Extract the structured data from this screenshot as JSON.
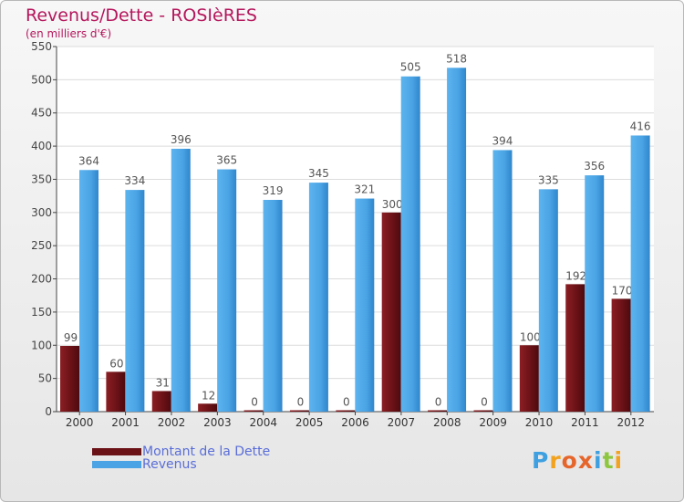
{
  "colors": {
    "debt": "#6b1217",
    "revenue": "#4aa3e4",
    "title": "#b5165c",
    "legend_text": "#5a6ed8"
  },
  "chart_data": {
    "type": "bar",
    "title": "Revenus/Dette - ROSIèRES",
    "subtitle": "(en milliers d'€)",
    "categories": [
      "2000",
      "2001",
      "2002",
      "2003",
      "2004",
      "2005",
      "2006",
      "2007",
      "2008",
      "2009",
      "2010",
      "2011",
      "2012"
    ],
    "series": [
      {
        "name": "Montant de la Dette",
        "values": [
          99,
          60,
          31,
          12,
          0,
          0,
          0,
          300,
          0,
          0,
          100,
          192,
          170
        ]
      },
      {
        "name": "Revenus",
        "values": [
          364,
          334,
          396,
          365,
          319,
          345,
          321,
          505,
          518,
          394,
          335,
          356,
          416
        ]
      }
    ],
    "ylim": [
      0,
      550
    ],
    "yticks": [
      "0",
      "50",
      "100",
      "150",
      "200",
      "250",
      "300",
      "350",
      "400",
      "450",
      "500",
      "550"
    ],
    "grid": true,
    "legend_position": "bottom-left"
  },
  "logo": {
    "text": "Proxiti",
    "letters": [
      "P",
      "r",
      "o",
      "x",
      "i",
      "t",
      "i"
    ],
    "colors": [
      "#3ea0e0",
      "#f2a21c",
      "#e6652a",
      "#e6652a",
      "#3ea0e0",
      "#8dc63f",
      "#f2a21c"
    ]
  }
}
